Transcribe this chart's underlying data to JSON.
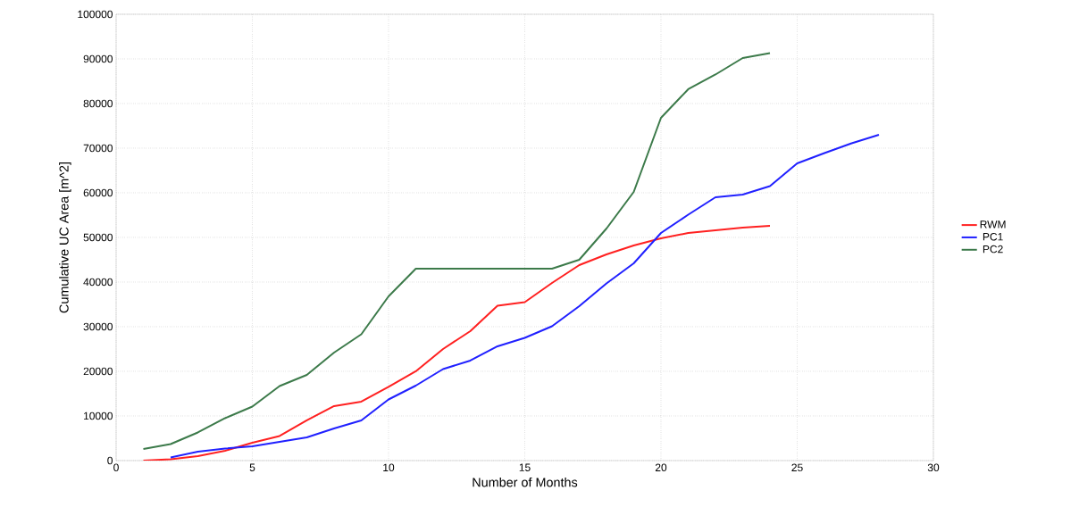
{
  "chart_data": {
    "type": "line",
    "xlabel": "Number of Months",
    "ylabel": "Cumulative UC Area [m^2]",
    "xlim": [
      0,
      30
    ],
    "xticks": [
      0,
      5,
      10,
      15,
      20,
      25,
      30
    ],
    "ylim": [
      0,
      100000
    ],
    "yticks": [
      0,
      10000,
      20000,
      30000,
      40000,
      50000,
      60000,
      70000,
      80000,
      90000,
      100000
    ],
    "grid": true,
    "legend": "right",
    "marker": "none",
    "line_style": "solid",
    "series": [
      {
        "name": "RWM",
        "color": "#ff2020",
        "x": [
          1,
          2,
          3,
          4,
          5,
          6,
          7,
          8,
          9,
          10,
          11,
          12,
          13,
          14,
          15,
          16,
          17,
          18,
          19,
          20,
          21,
          22,
          23,
          24
        ],
        "values": [
          0,
          300,
          1000,
          2200,
          4000,
          5500,
          9000,
          12200,
          13200,
          16500,
          20000,
          25000,
          29000,
          34700,
          35500,
          39800,
          43800,
          46200,
          48200,
          49800,
          51000,
          51600,
          52200,
          52600
        ]
      },
      {
        "name": "PC1",
        "color": "#2020ff",
        "x": [
          2,
          3,
          4,
          5,
          6,
          7,
          8,
          9,
          10,
          11,
          12,
          13,
          14,
          15,
          16,
          17,
          18,
          19,
          20,
          21,
          22,
          23,
          24,
          25,
          26,
          27,
          28
        ],
        "values": [
          700,
          2000,
          2700,
          3200,
          4200,
          5200,
          7200,
          9000,
          13700,
          16800,
          20500,
          22400,
          25600,
          27500,
          30100,
          34600,
          39700,
          44200,
          51000,
          55100,
          59000,
          59600,
          61500,
          66600,
          68900,
          71100,
          73000
        ]
      },
      {
        "name": "PC2",
        "color": "#3c7a4a",
        "x": [
          1,
          2,
          3,
          4,
          5,
          6,
          7,
          8,
          9,
          10,
          11,
          12,
          13,
          14,
          15,
          16,
          17,
          18,
          19,
          20,
          21,
          22,
          23,
          24
        ],
        "values": [
          2600,
          3700,
          6300,
          9500,
          12100,
          16700,
          19200,
          24200,
          28300,
          36800,
          43000,
          43000,
          43000,
          43000,
          43000,
          43000,
          45000,
          52000,
          60200,
          76800,
          83200,
          86500,
          90200,
          91300
        ]
      }
    ]
  }
}
